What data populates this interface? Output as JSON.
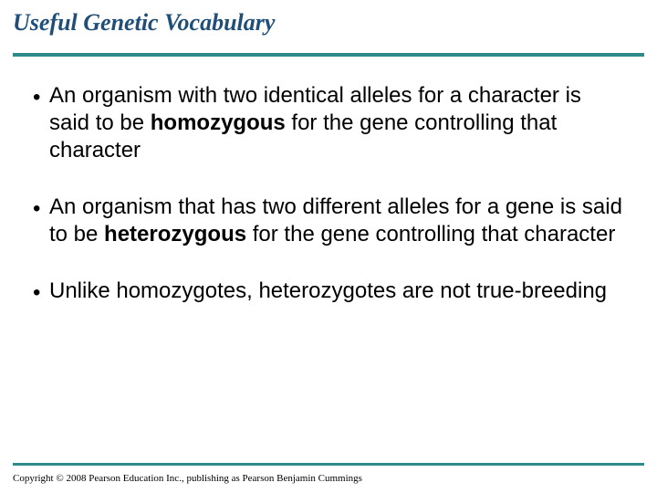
{
  "title": "Useful Genetic Vocabulary",
  "title_color": "#1f4e79",
  "title_fontsize": 26,
  "title_fontfamily": "Times New Roman",
  "title_style": "italic bold",
  "rule_color": "#2e8b8b",
  "top_rule_thickness": 4,
  "bottom_rule_thickness": 3,
  "background_color": "#ffffff",
  "body_fontfamily": "Arial",
  "body_fontsize": 24,
  "body_color": "#000000",
  "bullets": [
    {
      "pre": "An organism with two identical alleles for a character is said to be ",
      "bold": "homozygous",
      "post": " for the gene controlling that character"
    },
    {
      "pre": "An organism that has two different alleles for a gene is said to be ",
      "bold": "heterozygous",
      "post": " for the gene controlling that character"
    },
    {
      "pre": "Unlike homozygotes, heterozygotes are not true-breeding",
      "bold": "",
      "post": ""
    }
  ],
  "copyright": "Copyright © 2008 Pearson Education Inc., publishing as Pearson Benjamin Cummings",
  "copyright_fontsize": 11,
  "copyright_fontfamily": "Times New Roman"
}
